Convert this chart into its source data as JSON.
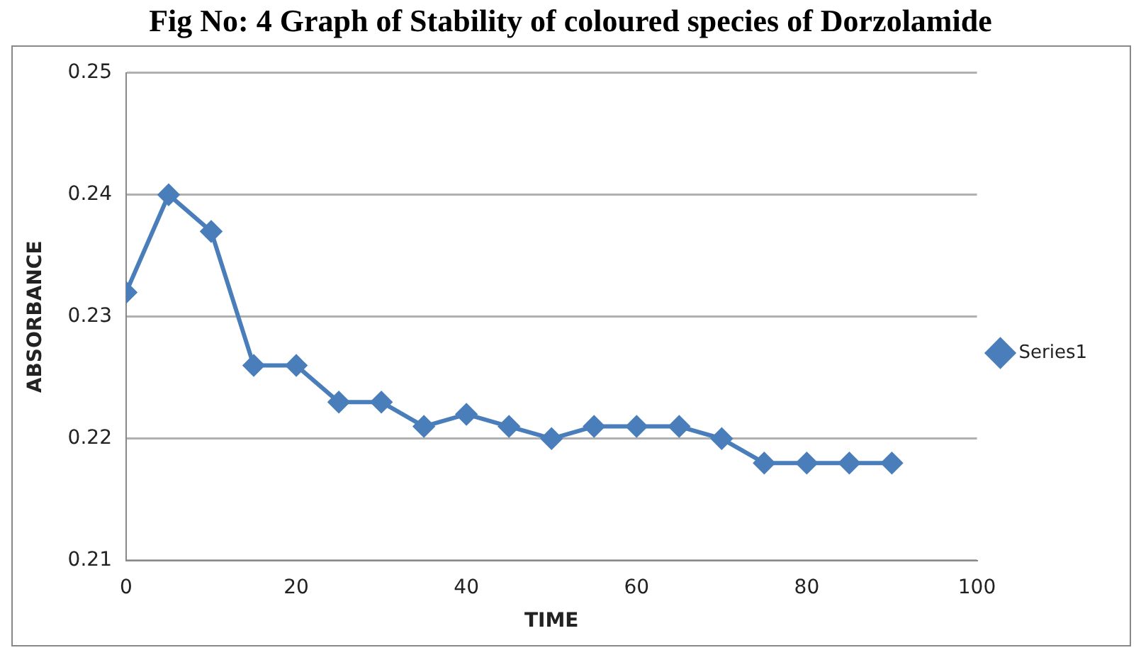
{
  "chart_data": {
    "type": "line",
    "title": "Fig No: 4 Graph of Stability of coloured species of Dorzolamide",
    "xlabel": "TIME",
    "ylabel": "ABSORBANCE",
    "x": [
      0,
      5,
      10,
      15,
      20,
      25,
      30,
      35,
      40,
      45,
      50,
      55,
      60,
      65,
      70,
      75,
      80,
      85,
      90
    ],
    "series": [
      {
        "name": "Series1",
        "color": "#4a7ebb",
        "values": [
          0.232,
          0.24,
          0.237,
          0.226,
          0.226,
          0.223,
          0.223,
          0.221,
          0.222,
          0.221,
          0.22,
          0.221,
          0.221,
          0.221,
          0.22,
          0.218,
          0.218,
          0.218,
          0.218
        ]
      }
    ],
    "xlim": [
      0,
      100
    ],
    "xticks": [
      0,
      20,
      40,
      60,
      80,
      100
    ],
    "ylim": [
      0.21,
      0.25
    ],
    "yticks": [
      0.21,
      0.22,
      0.23,
      0.24,
      0.25
    ],
    "grid": "y",
    "legend": "right",
    "marker": "diamond",
    "line_style": "solid"
  }
}
